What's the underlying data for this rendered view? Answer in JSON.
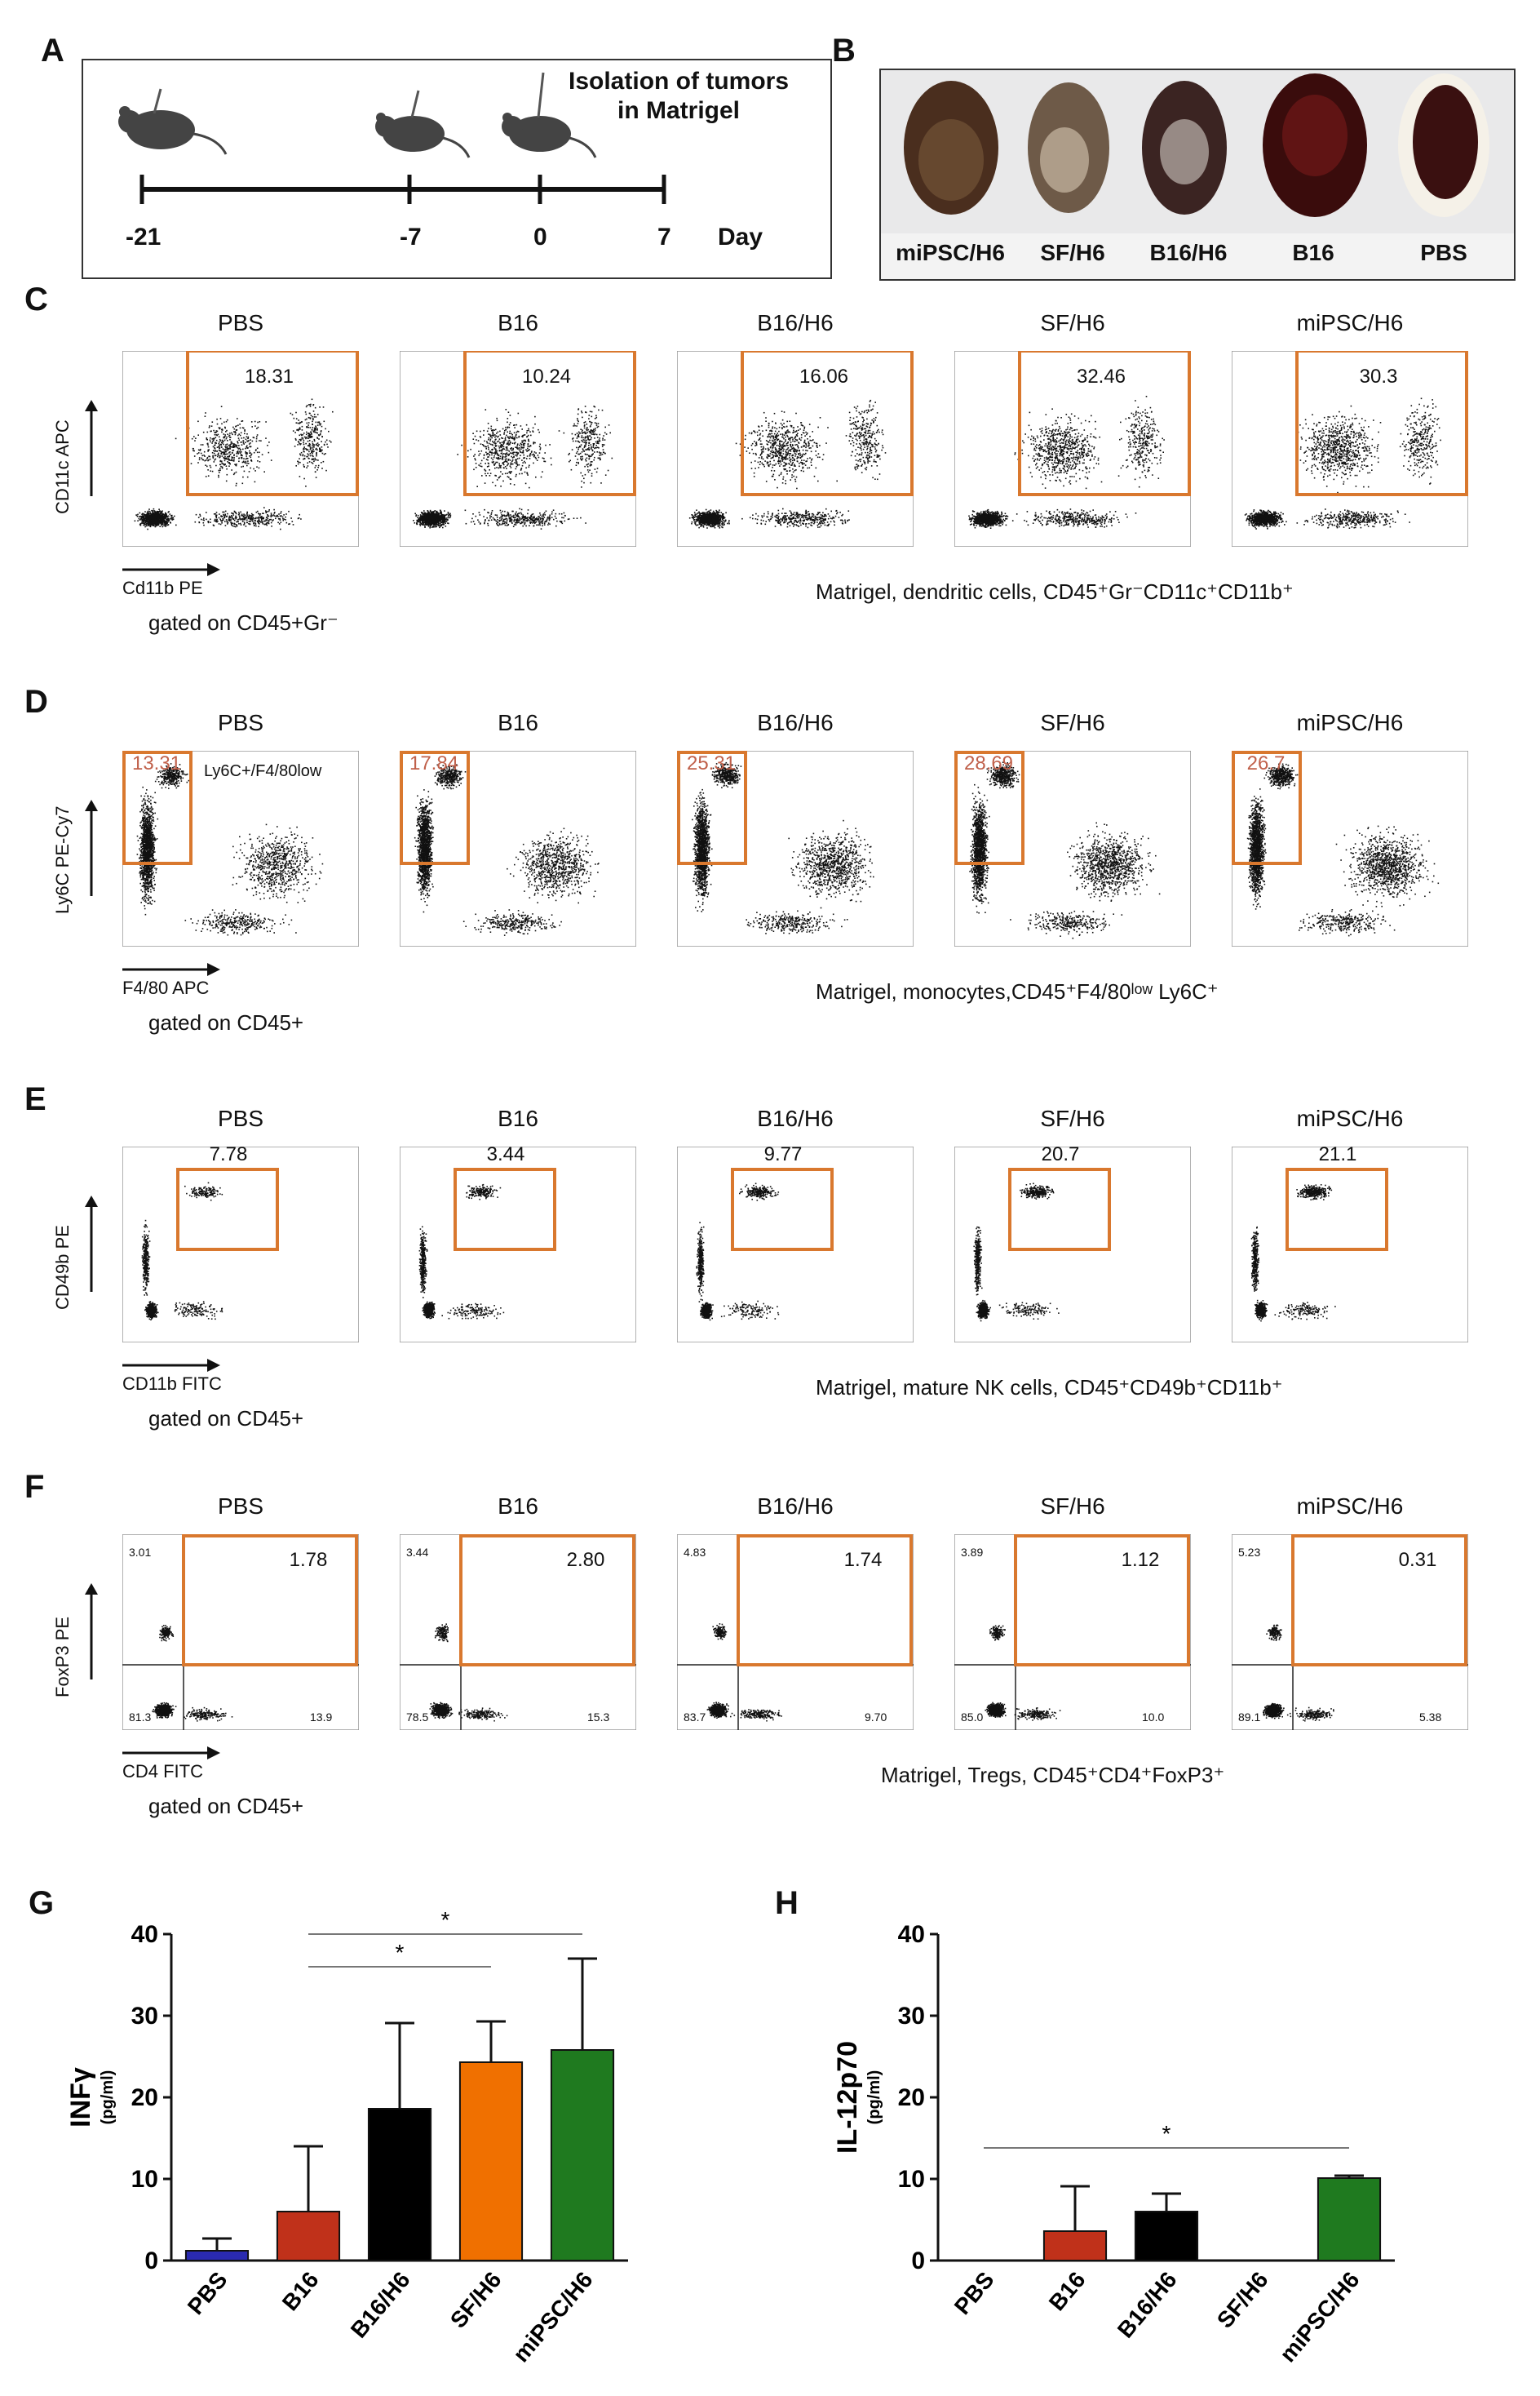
{
  "panel_labels": [
    "A",
    "B",
    "C",
    "D",
    "E",
    "F",
    "G",
    "H"
  ],
  "panel_a": {
    "annotation": "Isolation of tumors in Matrigel",
    "annotation_line1": "Isolation of tumors",
    "annotation_line2": "in Matrigel",
    "timepoints": [
      "-21",
      "-7",
      "0",
      "7"
    ],
    "unit_label": "Day"
  },
  "panel_b": {
    "samples": [
      "miPSC/H6",
      "SF/H6",
      "B16/H6",
      "B16",
      "PBS"
    ]
  },
  "panel_c": {
    "groups": [
      "PBS",
      "B16",
      "B16/H6",
      "SF/H6",
      "miPSC/H6"
    ],
    "gate_values": [
      "18.31",
      "10.24",
      "16.06",
      "32.46",
      "30.3"
    ],
    "y_axis": "CD11c APC",
    "x_axis": "Cd11b PE",
    "gating": "gated on CD45+Gr⁻",
    "caption": "Matrigel, dendritic cells, CD45⁺Gr⁻CD11c⁺CD11b⁺"
  },
  "panel_d": {
    "groups": [
      "PBS",
      "B16",
      "B16/H6",
      "SF/H6",
      "miPSC/H6"
    ],
    "gate_values": [
      "13.31",
      "17.84",
      "25.31",
      "28.69",
      "26.7"
    ],
    "gate_label": "Ly6C+/F4/80low",
    "y_axis": "Ly6C PE-Cy7",
    "x_axis": "F4/80 APC",
    "gating": "gated on CD45+",
    "caption": "Matrigel, monocytes,CD45⁺F4/80ˡᵒʷ Ly6C⁺"
  },
  "panel_e": {
    "groups": [
      "PBS",
      "B16",
      "B16/H6",
      "SF/H6",
      "miPSC/H6"
    ],
    "gate_values": [
      "7.78",
      "3.44",
      "9.77",
      "20.7",
      "21.1"
    ],
    "y_axis": "CD49b PE",
    "x_axis": "CD11b FITC",
    "gating": "gated on CD45+",
    "caption": "Matrigel, mature NK cells, CD45⁺CD49b⁺CD11b⁺"
  },
  "panel_f": {
    "groups": [
      "PBS",
      "B16",
      "B16/H6",
      "SF/H6",
      "miPSC/H6"
    ],
    "gate_values": [
      "1.78",
      "2.80",
      "1.74",
      "1.12",
      "0.31"
    ],
    "upper_left": [
      "3.01",
      "3.44",
      "4.83",
      "3.89",
      "5.23"
    ],
    "lower_left": [
      "81.3",
      "78.5",
      "83.7",
      "85.0",
      "89.1"
    ],
    "lower_right": [
      "13.9",
      "15.3",
      "9.70",
      "10.0",
      "5.38"
    ],
    "y_axis": "FoxP3  PE",
    "x_axis": "CD4 FITC",
    "gating": "gated on CD45+",
    "caption": "Matrigel, Tregs, CD45⁺CD4⁺FoxP3⁺"
  },
  "chart_data": [
    {
      "panel": "G",
      "type": "bar",
      "categories": [
        "PBS",
        "B16",
        "B16/H6",
        "SF/H6",
        "miPSC/H6"
      ],
      "values": [
        1.2,
        6.0,
        18.6,
        24.3,
        25.8
      ],
      "errors": [
        1.5,
        8.0,
        10.5,
        5.0,
        11.2
      ],
      "colors": [
        "#2a2ab0",
        "#c0311a",
        "#000000",
        "#f07000",
        "#1f7a1f"
      ],
      "ylabel": "INFγ",
      "yunit": "(pg/ml)",
      "ylim": [
        0,
        40
      ],
      "yticks": [
        "0",
        "10",
        "20",
        "30",
        "40"
      ],
      "significance": [
        {
          "from": "B16",
          "to": "SF/H6",
          "label": "*"
        },
        {
          "from": "B16",
          "to": "miPSC/H6",
          "label": "*"
        }
      ]
    },
    {
      "panel": "H",
      "type": "bar",
      "categories": [
        "PBS",
        "B16",
        "B16/H6",
        "SF/H6",
        "miPSC/H6"
      ],
      "values": [
        0,
        3.6,
        6.0,
        0,
        10.1
      ],
      "errors": [
        0,
        5.5,
        2.2,
        0,
        0.3
      ],
      "colors": [
        "#2a2ab0",
        "#c0311a",
        "#000000",
        "#f07000",
        "#1f7a1f"
      ],
      "ylabel": "IL-12p70",
      "yunit": "(pg/ml)",
      "ylim": [
        0,
        40
      ],
      "yticks": [
        "0",
        "10",
        "20",
        "30",
        "40"
      ],
      "significance": [
        {
          "from": "PBS",
          "to": "miPSC/H6",
          "label": "*"
        }
      ]
    }
  ]
}
